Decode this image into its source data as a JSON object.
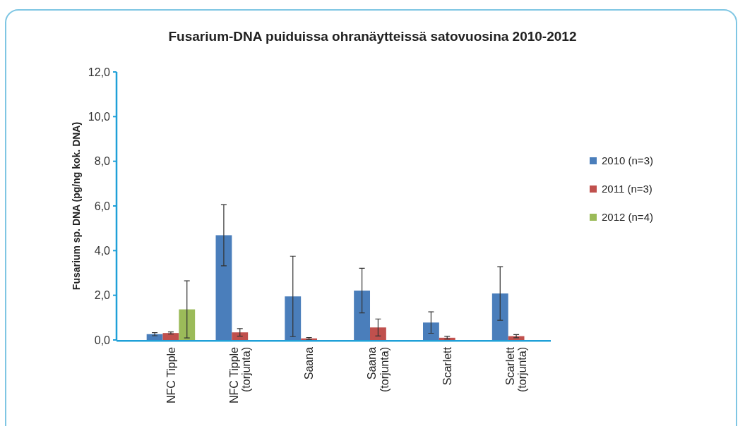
{
  "chart_data": {
    "type": "bar",
    "title": "Fusarium-DNA puiduissa ohranäytteissä satovuosina 2010-2012",
    "ylabel": "Fusarium sp. DNA (pg/ng kok. DNA)",
    "categories": [
      "NFC Tipple",
      "NFC Tipple (torjunta)",
      "Saana",
      "Saana (torjunta)",
      "Scarlett",
      "Scarlett (torjunta)"
    ],
    "series": [
      {
        "name": "2010 (n=3)",
        "color": "#4a7ebb",
        "values": [
          0.26,
          4.69,
          1.95,
          2.21,
          0.78,
          2.08
        ],
        "errors": [
          0.07,
          1.37,
          1.8,
          1.0,
          0.48,
          1.2
        ]
      },
      {
        "name": "2011 (n=3)",
        "color": "#c0504d",
        "values": [
          0.31,
          0.34,
          0.07,
          0.56,
          0.1,
          0.17
        ],
        "errors": [
          0.05,
          0.17,
          0.04,
          0.38,
          0.06,
          0.07
        ]
      },
      {
        "name": "2012 (n=4)",
        "color": "#9bbb59",
        "values": [
          1.37,
          null,
          null,
          null,
          null,
          null
        ],
        "errors": [
          1.28,
          null,
          null,
          null,
          null,
          null
        ]
      }
    ],
    "ylim": [
      0,
      12
    ],
    "yticks": [
      {
        "value": 0,
        "label": "0,0"
      },
      {
        "value": 2,
        "label": "2,0"
      },
      {
        "value": 4,
        "label": "4,0"
      },
      {
        "value": 6,
        "label": "6,0"
      },
      {
        "value": 8,
        "label": "8,0"
      },
      {
        "value": 10,
        "label": "10,0"
      },
      {
        "value": 12,
        "label": "12,0"
      }
    ],
    "legend": "right",
    "grid": false
  }
}
